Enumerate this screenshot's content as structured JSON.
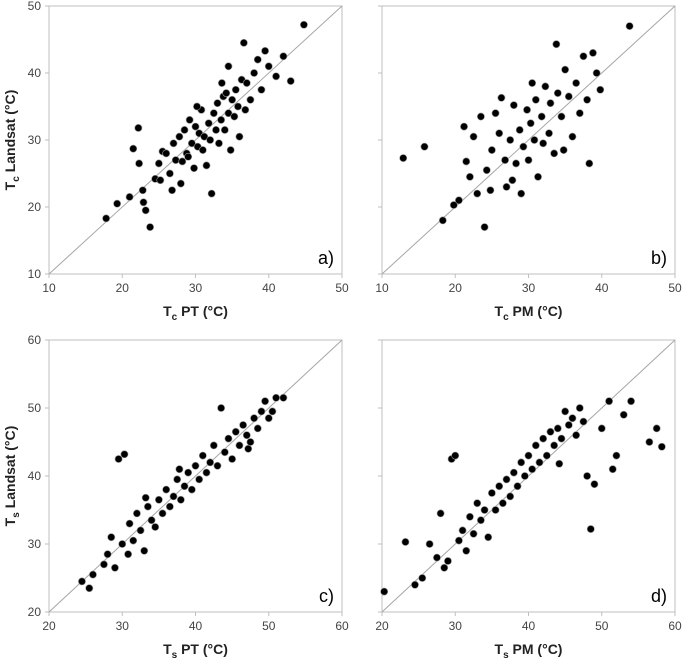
{
  "chart_data": [
    {
      "id": "a",
      "type": "scatter",
      "panel_label": "a)",
      "xlabel_main": "T",
      "xlabel_sub": "c",
      "xlabel_rest": " PT (°C)",
      "ylabel_main": "T",
      "ylabel_sub": "c",
      "ylabel_rest": " Landsat (°C)",
      "xlim": [
        10,
        50
      ],
      "ylim": [
        10,
        50
      ],
      "xticks": [
        "10",
        "20",
        "30",
        "40",
        "50"
      ],
      "yticks": [
        "10",
        "20",
        "30",
        "40",
        "50"
      ],
      "show_x_ticklabels": true,
      "show_y_ticklabels": true,
      "one_to_one_line": true,
      "points": [
        [
          17.8,
          18.3
        ],
        [
          19.3,
          20.5
        ],
        [
          21,
          21.5
        ],
        [
          21.5,
          28.7
        ],
        [
          22.2,
          31.8
        ],
        [
          22.3,
          26.5
        ],
        [
          22.8,
          22.5
        ],
        [
          22.9,
          20.7
        ],
        [
          23.2,
          19.5
        ],
        [
          23.8,
          17.0
        ],
        [
          24.5,
          24.2
        ],
        [
          25,
          26.5
        ],
        [
          25.5,
          28.3
        ],
        [
          26,
          28
        ],
        [
          26.5,
          25.0
        ],
        [
          27,
          29.5
        ],
        [
          27.3,
          27.0
        ],
        [
          27.8,
          30.5
        ],
        [
          28,
          23.5
        ],
        [
          28.2,
          26.8
        ],
        [
          28.5,
          31.5
        ],
        [
          28.8,
          28.0
        ],
        [
          29,
          27.5
        ],
        [
          29.2,
          33.0
        ],
        [
          29.5,
          29.5
        ],
        [
          29.8,
          25.8
        ],
        [
          30,
          32.0
        ],
        [
          30.3,
          29.0
        ],
        [
          30.5,
          31.0
        ],
        [
          30.8,
          34.5
        ],
        [
          31,
          28.5
        ],
        [
          31.2,
          30.5
        ],
        [
          31.5,
          26.2
        ],
        [
          31.8,
          32.5
        ],
        [
          32,
          30.0
        ],
        [
          32.2,
          22.0
        ],
        [
          32.5,
          34.0
        ],
        [
          32.8,
          31.5
        ],
        [
          33,
          35.5
        ],
        [
          33.2,
          29.5
        ],
        [
          33.5,
          33.0
        ],
        [
          33.8,
          36.5
        ],
        [
          34,
          31.5
        ],
        [
          34.2,
          37.0
        ],
        [
          34.5,
          34.0
        ],
        [
          34.8,
          28.5
        ],
        [
          35,
          36.0
        ],
        [
          35.3,
          33.5
        ],
        [
          35.5,
          37.5
        ],
        [
          35.8,
          35.0
        ],
        [
          36,
          30.5
        ],
        [
          36.3,
          39.0
        ],
        [
          36.6,
          44.5
        ],
        [
          37,
          38.5
        ],
        [
          37.5,
          36.0
        ],
        [
          38,
          40.0
        ],
        [
          38.5,
          42.0
        ],
        [
          39,
          37.5
        ],
        [
          39.5,
          43.3
        ],
        [
          40,
          41.0
        ],
        [
          41,
          39.5
        ],
        [
          42,
          42.5
        ],
        [
          43,
          38.8
        ],
        [
          44.8,
          47.2
        ],
        [
          34.5,
          41.0
        ],
        [
          33.6,
          38.5
        ],
        [
          36.8,
          34.5
        ],
        [
          26.8,
          22.5
        ],
        [
          25.2,
          24.0
        ],
        [
          30.2,
          35.0
        ]
      ]
    },
    {
      "id": "b",
      "type": "scatter",
      "panel_label": "b)",
      "xlabel_main": "T",
      "xlabel_sub": "c",
      "xlabel_rest": " PM (°C)",
      "ylabel_main": "",
      "ylabel_sub": "",
      "ylabel_rest": "",
      "xlim": [
        10,
        50
      ],
      "ylim": [
        10,
        50
      ],
      "xticks": [
        "10",
        "20",
        "30",
        "40",
        "50"
      ],
      "yticks": [
        "",
        "",
        "",
        "",
        ""
      ],
      "show_x_ticklabels": true,
      "show_y_ticklabels": false,
      "one_to_one_line": true,
      "points": [
        [
          12.9,
          27.3
        ],
        [
          15.8,
          29.0
        ],
        [
          18.3,
          18.0
        ],
        [
          19.8,
          20.3
        ],
        [
          20.5,
          21.0
        ],
        [
          21.2,
          32.0
        ],
        [
          21.5,
          26.8
        ],
        [
          22,
          24.5
        ],
        [
          22.5,
          30.5
        ],
        [
          23,
          22.0
        ],
        [
          23.5,
          33.5
        ],
        [
          24,
          17.0
        ],
        [
          24.3,
          25.5
        ],
        [
          25,
          28.5
        ],
        [
          25.5,
          34.0
        ],
        [
          26,
          31.0
        ],
        [
          26.3,
          36.3
        ],
        [
          26.8,
          27.0
        ],
        [
          27,
          23.0
        ],
        [
          27.5,
          30.0
        ],
        [
          28,
          35.2
        ],
        [
          28.3,
          26.5
        ],
        [
          28.8,
          31.5
        ],
        [
          29,
          22.0
        ],
        [
          29.3,
          29.0
        ],
        [
          29.8,
          34.5
        ],
        [
          30,
          27.0
        ],
        [
          30.3,
          32.5
        ],
        [
          30.8,
          30.0
        ],
        [
          31,
          36.0
        ],
        [
          31.3,
          24.5
        ],
        [
          31.8,
          33.5
        ],
        [
          32,
          29.5
        ],
        [
          32.3,
          38.0
        ],
        [
          32.8,
          31.0
        ],
        [
          33,
          35.5
        ],
        [
          33.5,
          28.0
        ],
        [
          33.8,
          44.3
        ],
        [
          34,
          37.0
        ],
        [
          34.5,
          33.5
        ],
        [
          35,
          40.5
        ],
        [
          35.5,
          36.5
        ],
        [
          36,
          30.5
        ],
        [
          36.5,
          38.5
        ],
        [
          37,
          34.0
        ],
        [
          37.5,
          42.5
        ],
        [
          38,
          36.0
        ],
        [
          38.3,
          26.5
        ],
        [
          38.8,
          43.0
        ],
        [
          39.3,
          40.0
        ],
        [
          39.8,
          37.5
        ],
        [
          43.8,
          47.0
        ],
        [
          34.8,
          28.5
        ],
        [
          27.8,
          24.0
        ],
        [
          24.8,
          22.5
        ],
        [
          30.5,
          38.5
        ]
      ]
    },
    {
      "id": "c",
      "type": "scatter",
      "panel_label": "c)",
      "xlabel_main": "T",
      "xlabel_sub": "s",
      "xlabel_rest": " PT (°C)",
      "ylabel_main": "T",
      "ylabel_sub": "s",
      "ylabel_rest": " Landsat (°C)",
      "xlim": [
        20,
        60
      ],
      "ylim": [
        20,
        60
      ],
      "xticks": [
        "20",
        "30",
        "40",
        "50",
        "60"
      ],
      "yticks": [
        "20",
        "30",
        "40",
        "50",
        "60"
      ],
      "show_x_ticklabels": true,
      "show_y_ticklabels": true,
      "one_to_one_line": true,
      "points": [
        [
          24.5,
          24.5
        ],
        [
          25.5,
          23.5
        ],
        [
          26,
          25.5
        ],
        [
          27.5,
          27.0
        ],
        [
          28,
          28.5
        ],
        [
          28.5,
          31.0
        ],
        [
          29,
          26.5
        ],
        [
          29.5,
          42.5
        ],
        [
          30,
          30.0
        ],
        [
          30.3,
          43.2
        ],
        [
          30.8,
          28.5
        ],
        [
          31,
          33.0
        ],
        [
          31.5,
          30.5
        ],
        [
          32,
          34.5
        ],
        [
          32.5,
          32.0
        ],
        [
          33,
          29.0
        ],
        [
          33.5,
          35.5
        ],
        [
          34,
          33.5
        ],
        [
          34.5,
          32.5
        ],
        [
          35,
          36.5
        ],
        [
          35.5,
          34.5
        ],
        [
          36,
          38.0
        ],
        [
          36.5,
          35.5
        ],
        [
          37,
          37.0
        ],
        [
          37.5,
          39.5
        ],
        [
          38,
          36.5
        ],
        [
          38.5,
          38.5
        ],
        [
          39,
          40.5
        ],
        [
          39.5,
          38.0
        ],
        [
          40,
          41.5
        ],
        [
          40.5,
          39.5
        ],
        [
          41,
          43.0
        ],
        [
          41.5,
          40.5
        ],
        [
          42,
          42.0
        ],
        [
          42.5,
          44.5
        ],
        [
          43,
          41.5
        ],
        [
          43.5,
          50.0
        ],
        [
          44,
          43.5
        ],
        [
          44.5,
          45.5
        ],
        [
          45,
          42.5
        ],
        [
          45.5,
          46.5
        ],
        [
          46,
          44.5
        ],
        [
          46.5,
          47.5
        ],
        [
          47,
          46.0
        ],
        [
          47.5,
          45.0
        ],
        [
          48,
          48.5
        ],
        [
          48.5,
          47.0
        ],
        [
          49,
          49.5
        ],
        [
          49.5,
          51.0
        ],
        [
          50,
          48.5
        ],
        [
          50.5,
          49.5
        ],
        [
          51,
          51.5
        ],
        [
          52,
          51.5
        ],
        [
          47.2,
          44.0
        ],
        [
          33.2,
          36.8
        ],
        [
          37.8,
          41.0
        ]
      ]
    },
    {
      "id": "d",
      "type": "scatter",
      "panel_label": "d)",
      "xlabel_main": "T",
      "xlabel_sub": "s",
      "xlabel_rest": " PM (°C)",
      "ylabel_main": "",
      "ylabel_sub": "",
      "ylabel_rest": "",
      "xlim": [
        20,
        60
      ],
      "ylim": [
        20,
        60
      ],
      "xticks": [
        "20",
        "30",
        "40",
        "50",
        "60"
      ],
      "yticks": [
        "",
        "",
        "",
        "",
        ""
      ],
      "show_x_ticklabels": true,
      "show_y_ticklabels": false,
      "one_to_one_line": true,
      "points": [
        [
          20.3,
          23.0
        ],
        [
          23.2,
          30.3
        ],
        [
          24.5,
          24.0
        ],
        [
          25.5,
          25.0
        ],
        [
          26.5,
          30.0
        ],
        [
          27.5,
          28.0
        ],
        [
          28,
          34.5
        ],
        [
          28.5,
          26.5
        ],
        [
          29,
          27.5
        ],
        [
          29.5,
          42.5
        ],
        [
          30,
          43.0
        ],
        [
          30.5,
          30.5
        ],
        [
          31,
          32.0
        ],
        [
          31.5,
          29.0
        ],
        [
          32,
          34.0
        ],
        [
          32.5,
          31.5
        ],
        [
          33,
          36.0
        ],
        [
          33.5,
          33.5
        ],
        [
          34,
          35.0
        ],
        [
          34.5,
          31.0
        ],
        [
          35,
          37.5
        ],
        [
          35.5,
          35.0
        ],
        [
          36,
          38.5
        ],
        [
          36.5,
          36.0
        ],
        [
          37,
          39.5
        ],
        [
          37.5,
          37.0
        ],
        [
          38,
          40.5
        ],
        [
          38.5,
          38.5
        ],
        [
          39,
          42.0
        ],
        [
          39.5,
          40.0
        ],
        [
          40,
          43.0
        ],
        [
          40.5,
          41.0
        ],
        [
          41,
          44.5
        ],
        [
          41.5,
          42.0
        ],
        [
          42,
          45.5
        ],
        [
          42.5,
          43.0
        ],
        [
          43,
          46.5
        ],
        [
          43.5,
          44.5
        ],
        [
          44,
          47.0
        ],
        [
          44.5,
          45.5
        ],
        [
          45,
          49.5
        ],
        [
          45.5,
          47.5
        ],
        [
          46,
          48.5
        ],
        [
          46.5,
          46.0
        ],
        [
          47,
          50.0
        ],
        [
          47.5,
          48.0
        ],
        [
          48,
          40.0
        ],
        [
          48.5,
          32.2
        ],
        [
          49,
          38.8
        ],
        [
          50,
          47.0
        ],
        [
          51,
          51.0
        ],
        [
          52,
          43.0
        ],
        [
          53,
          49.0
        ],
        [
          54,
          51.0
        ],
        [
          56.5,
          45.0
        ],
        [
          57.5,
          47.0
        ],
        [
          58.2,
          44.3
        ],
        [
          51.5,
          41.0
        ],
        [
          44.2,
          41.8
        ]
      ]
    }
  ]
}
